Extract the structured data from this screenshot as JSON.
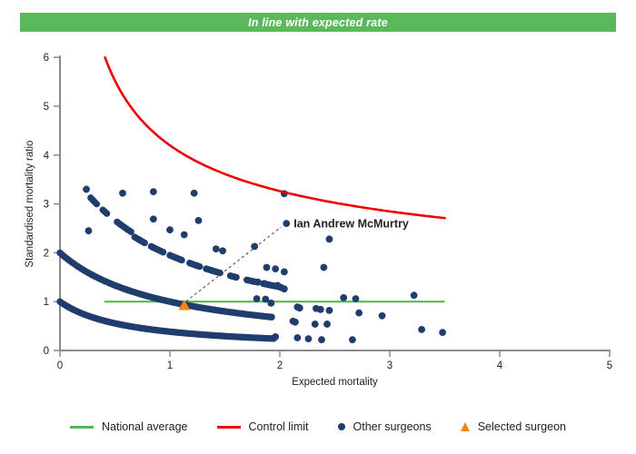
{
  "header": {
    "title": "In line with expected rate",
    "bg_color": "#5CB85C",
    "text_color": "#FFFFFF"
  },
  "chart_data": {
    "type": "scatter",
    "title": "",
    "xlabel": "Expected mortality",
    "ylabel": "Standardised mortality ratio",
    "xlim": [
      0,
      5
    ],
    "ylim": [
      0,
      6
    ],
    "x_ticks": [
      0,
      1,
      2,
      3,
      4,
      5
    ],
    "y_ticks": [
      0,
      1,
      2,
      3,
      4,
      5,
      6
    ],
    "grid": "off",
    "legend_position": "bottom",
    "axis_color": "#8A8A8A",
    "national_average": {
      "label": "National average",
      "color": "#53B953",
      "y": 1,
      "x_start": 0.405,
      "x_end": 3.5
    },
    "control_limit": {
      "label": "Control limit",
      "color": "#EE0000",
      "formula": "SMR = 1 + 3.2/sqrt(E), clipped at SMR = 6",
      "a": 1,
      "b": 3.2,
      "x_start": 0.41,
      "x_end": 3.5
    },
    "other_surgeons": {
      "label": "Other surgeons",
      "color": "#1F3D6D",
      "band_formula": "dense dot chains following SMR = a/(1 + b*E) over the listed E segments",
      "bands": [
        {
          "a": 2,
          "b": 1,
          "segments": [
            [
              0,
              1.93
            ]
          ]
        },
        {
          "a": 1,
          "b": 1.6,
          "segments": [
            [
              0,
              1.95
            ]
          ]
        },
        {
          "a": 3.9,
          "b": 1,
          "segments": [
            [
              0.68,
              0.78
            ],
            [
              0.83,
              0.95
            ],
            [
              1.0,
              1.12
            ],
            [
              1.18,
              1.27
            ],
            [
              1.33,
              1.47
            ],
            [
              1.55,
              1.62
            ],
            [
              1.7,
              1.78
            ],
            [
              1.85,
              2.0
            ]
          ]
        },
        {
          "a": 4,
          "b": 1,
          "segments": [
            [
              0.28,
              0.34
            ],
            [
              0.39,
              0.43
            ],
            [
              0.52,
              0.65
            ]
          ]
        }
      ],
      "points": [
        [
          0.24,
          3.3
        ],
        [
          0.57,
          3.22
        ],
        [
          0.85,
          3.25
        ],
        [
          1.22,
          3.22
        ],
        [
          2.04,
          3.21
        ],
        [
          0.26,
          2.45
        ],
        [
          0.85,
          2.69
        ],
        [
          1.26,
          2.66
        ],
        [
          1.0,
          2.47
        ],
        [
          1.13,
          2.37
        ],
        [
          1.42,
          2.08
        ],
        [
          1.48,
          2.04
        ],
        [
          1.77,
          2.13
        ],
        [
          2.45,
          2.28
        ],
        [
          1.88,
          1.7
        ],
        [
          1.96,
          1.67
        ],
        [
          2.4,
          1.7
        ],
        [
          2.04,
          1.61
        ],
        [
          1.8,
          1.4
        ],
        [
          1.86,
          1.37
        ],
        [
          1.98,
          1.33
        ],
        [
          2.01,
          1.29
        ],
        [
          2.04,
          1.26
        ],
        [
          1.79,
          1.06
        ],
        [
          1.87,
          1.05
        ],
        [
          1.92,
          0.97
        ],
        [
          2.16,
          0.89
        ],
        [
          2.18,
          0.87
        ],
        [
          2.33,
          0.86
        ],
        [
          2.37,
          0.84
        ],
        [
          2.45,
          0.82
        ],
        [
          2.58,
          1.08
        ],
        [
          2.69,
          1.06
        ],
        [
          3.22,
          1.13
        ],
        [
          2.72,
          0.77
        ],
        [
          2.93,
          0.71
        ],
        [
          2.12,
          0.6
        ],
        [
          2.14,
          0.58
        ],
        [
          2.32,
          0.54
        ],
        [
          2.43,
          0.54
        ],
        [
          3.29,
          0.43
        ],
        [
          3.48,
          0.37
        ],
        [
          1.96,
          0.28
        ],
        [
          2.16,
          0.26
        ],
        [
          2.26,
          0.24
        ],
        [
          2.38,
          0.22
        ],
        [
          2.66,
          0.22
        ]
      ]
    },
    "selected_surgeon": {
      "label": "Selected surgeon",
      "color": "#F08519",
      "point": [
        1.13,
        0.93
      ],
      "name": "Ian Andrew McMurtry"
    },
    "annotation": {
      "text": "Ian Andrew McMurtry",
      "dot": [
        2.06,
        2.6
      ],
      "line_color": "#444444",
      "text_color": "#111111"
    }
  },
  "legend": {
    "items": [
      {
        "type": "line",
        "label": "National average"
      },
      {
        "type": "line",
        "label": "Control limit"
      },
      {
        "type": "dot",
        "label": "Other surgeons"
      },
      {
        "type": "triangle",
        "label": "Selected surgeon"
      }
    ]
  }
}
